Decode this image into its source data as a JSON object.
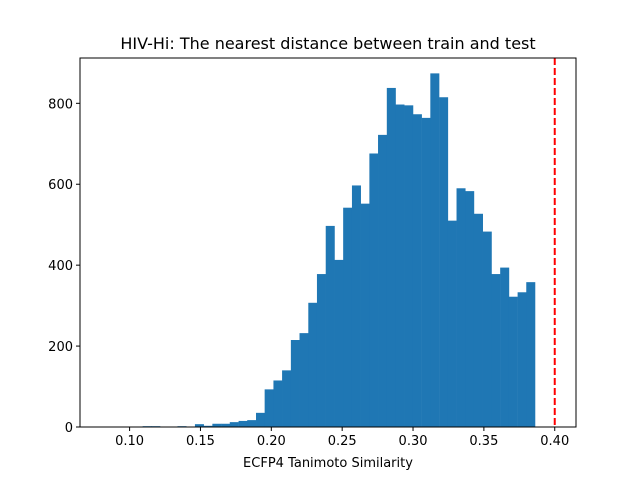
{
  "chart_data": {
    "type": "bar",
    "subtype": "histogram",
    "title": "HIV-Hi: The nearest distance between train and test",
    "xlabel": "ECFP4 Tanimoto Similarity",
    "ylabel": "",
    "xlim": [
      0.065,
      0.415
    ],
    "ylim": [
      0,
      912
    ],
    "xticks": [
      0.1,
      0.15,
      0.2,
      0.25,
      0.3,
      0.35,
      0.4
    ],
    "xtick_labels": [
      "0.10",
      "0.15",
      "0.20",
      "0.25",
      "0.30",
      "0.35",
      "0.40"
    ],
    "yticks": [
      0,
      200,
      400,
      600,
      800
    ],
    "ytick_labels": [
      "0",
      "200",
      "400",
      "600",
      "800"
    ],
    "bin_width": 0.00615,
    "bin_starts": [
      0.0784,
      0.0846,
      0.0907,
      0.0969,
      0.103,
      0.1092,
      0.1153,
      0.1215,
      0.1276,
      0.1338,
      0.14,
      0.1461,
      0.1523,
      0.1584,
      0.1646,
      0.1707,
      0.1769,
      0.183,
      0.1892,
      0.1953,
      0.2015,
      0.2076,
      0.2138,
      0.2199,
      0.2261,
      0.2322,
      0.2384,
      0.2446,
      0.2507,
      0.2569,
      0.263,
      0.2692,
      0.2753,
      0.2815,
      0.2876,
      0.2938,
      0.2999,
      0.3061,
      0.3122,
      0.3184,
      0.3245,
      0.3307,
      0.3368,
      0.343,
      0.3492,
      0.3553,
      0.3615,
      0.3676,
      0.3738,
      0.3799,
      0.3861,
      0.3922,
      0.3984
    ],
    "values": [
      0,
      0,
      0,
      0,
      0,
      2,
      2,
      0,
      0,
      2,
      0,
      7,
      3,
      8,
      8,
      12,
      15,
      17,
      35,
      93,
      115,
      140,
      215,
      232,
      307,
      378,
      497,
      413,
      542,
      597,
      552,
      676,
      722,
      838,
      797,
      795,
      773,
      764,
      874,
      815,
      510,
      590,
      583,
      527,
      483,
      378,
      394,
      322,
      333,
      358,
      0,
      0,
      0
    ],
    "bar_color": "#1f77b4",
    "reference_line": {
      "x": 0.4,
      "color": "#ff0000",
      "style": "dashed"
    },
    "grid": false,
    "legend": "none"
  }
}
